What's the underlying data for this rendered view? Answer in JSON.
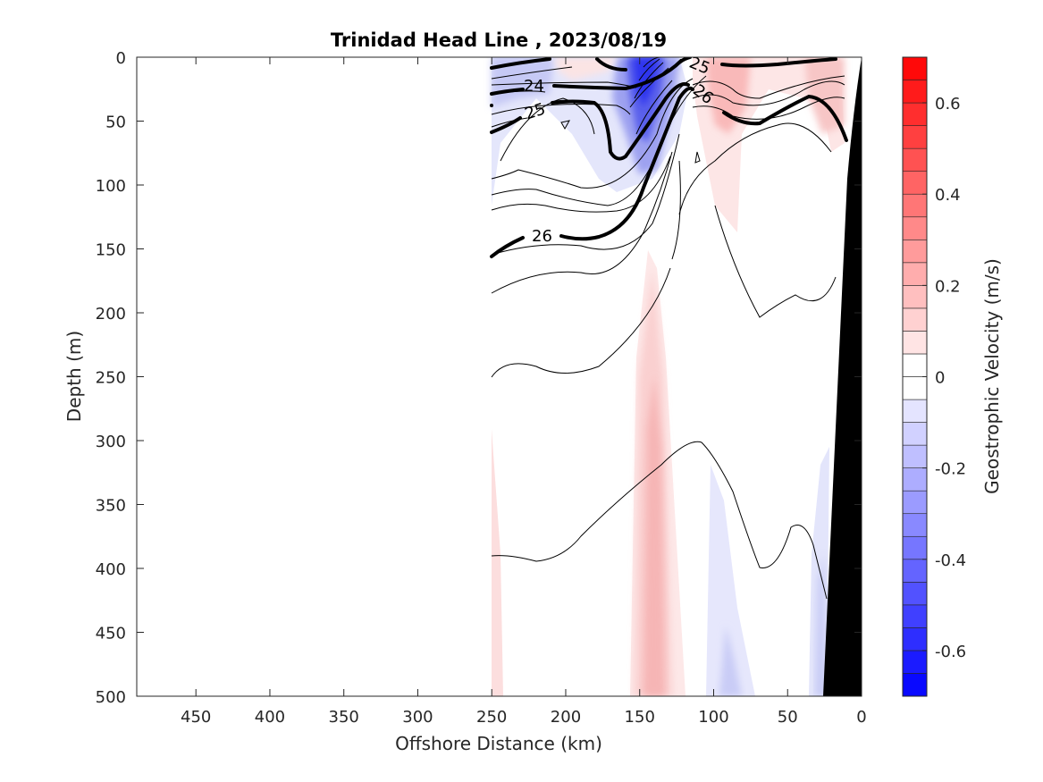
{
  "chart_data": {
    "type": "contour",
    "title": "Trinidad Head Line , 2023/08/19",
    "xlabel": "Offshore Distance (km)",
    "ylabel": "Depth (m)",
    "xlim": [
      490,
      0
    ],
    "ylim": [
      0,
      500
    ],
    "x_reversed": true,
    "y_reversed": true,
    "xticks": [
      "450",
      "400",
      "350",
      "300",
      "250",
      "200",
      "150",
      "100",
      "50",
      "0"
    ],
    "yticks": [
      "0",
      "50",
      "100",
      "150",
      "200",
      "250",
      "300",
      "350",
      "400",
      "450",
      "500"
    ],
    "colorbar": {
      "label": "Geostrophic Velocity (m/s)",
      "range": [
        -0.7,
        0.7
      ],
      "step": 0.05,
      "tick_labels": [
        "-0.6",
        "-0.4",
        "-0.2",
        "0",
        "0.2",
        "0.4",
        "0.6"
      ],
      "colormap": "blue-white-red",
      "negative_color": "#0000ff",
      "positive_color": "#ff0000"
    },
    "contour_labels": [
      "24",
      "25",
      "25",
      "26",
      "26"
    ],
    "velocity_patches": [
      {
        "sign": "negative",
        "x_range": [
          250,
          110
        ],
        "depth_range": [
          0,
          110
        ],
        "peak": -0.6
      },
      {
        "sign": "positive",
        "x_range": [
          215,
          150
        ],
        "depth_range": [
          0,
          40
        ],
        "peak": 0.1
      },
      {
        "sign": "positive",
        "x_range": [
          105,
          20
        ],
        "depth_range": [
          0,
          60
        ],
        "peak": 0.25
      },
      {
        "sign": "positive",
        "x_range": [
          165,
          120
        ],
        "depth_range": [
          170,
          500
        ],
        "peak": 0.15
      },
      {
        "sign": "positive",
        "x_range": [
          250,
          240
        ],
        "depth_range": [
          300,
          500
        ],
        "peak": 0.05
      },
      {
        "sign": "negative",
        "x_range": [
          105,
          75
        ],
        "depth_range": [
          300,
          500
        ],
        "peak": -0.15
      },
      {
        "sign": "negative",
        "x_range": [
          35,
          25
        ],
        "depth_range": [
          300,
          500
        ],
        "peak": -0.15
      }
    ],
    "grid": false,
    "bathymetry": "black wedge at the nearshore end (0–25 km), seafloor shallowing to the coast"
  }
}
